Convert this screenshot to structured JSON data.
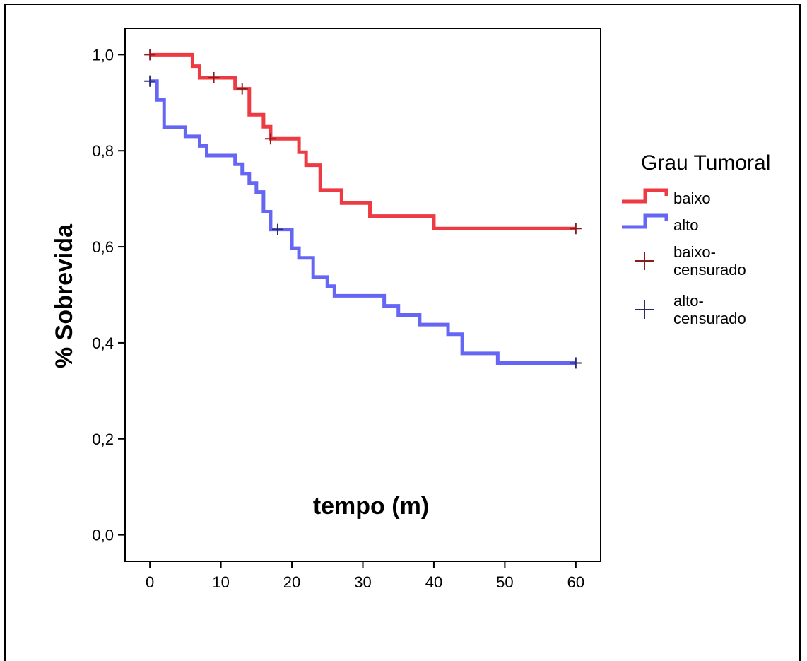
{
  "chart_data": {
    "type": "line",
    "subtype": "kaplan-meier step",
    "xlabel": "tempo (m)",
    "ylabel": "% Sobrevida",
    "xlim": [
      -3.5,
      63.5
    ],
    "ylim": [
      -0.055,
      1.055
    ],
    "x_ticks": [
      0,
      10,
      20,
      30,
      40,
      50,
      60
    ],
    "x_tick_labels": [
      "0",
      "10",
      "20",
      "30",
      "40",
      "50",
      "60"
    ],
    "y_ticks": [
      0.0,
      0.2,
      0.4,
      0.6,
      0.8,
      1.0
    ],
    "y_tick_labels": [
      "0,0",
      "0,2",
      "0,4",
      "0,6",
      "0,8",
      "1,0"
    ],
    "grid": false,
    "legend": {
      "title": "Grau Tumoral",
      "placement": "right",
      "entries": [
        {
          "label": "baixo",
          "kind": "line",
          "color": "#ee3a43"
        },
        {
          "label": "alto",
          "kind": "line",
          "color": "#6666f5"
        },
        {
          "label": "baixo-",
          "label2": "censurado",
          "kind": "marker",
          "color": "#8b1c1c"
        },
        {
          "label": "alto-",
          "label2": "censurado",
          "kind": "marker",
          "color": "#2a2a6e"
        }
      ]
    },
    "series": [
      {
        "name": "baixo",
        "color": "#ee3a43",
        "x": [
          0,
          6,
          7,
          12,
          14,
          16,
          17,
          21,
          22,
          24,
          27,
          31,
          40,
          60
        ],
        "y": [
          1.0,
          0.976,
          0.952,
          0.929,
          0.875,
          0.85,
          0.825,
          0.797,
          0.77,
          0.718,
          0.691,
          0.664,
          0.638,
          0.638
        ],
        "censored": {
          "x": [
            0,
            9,
            13,
            17,
            60
          ],
          "y": [
            1.0,
            0.952,
            0.929,
            0.825,
            0.638
          ],
          "color": "#8b1c1c"
        }
      },
      {
        "name": "alto",
        "color": "#6666f5",
        "x": [
          0,
          1,
          2,
          5,
          7,
          8,
          12,
          13,
          14,
          15,
          16,
          17,
          20,
          21,
          23,
          25,
          26,
          33,
          35,
          38,
          42,
          44,
          49,
          60
        ],
        "y": [
          0.945,
          0.906,
          0.849,
          0.83,
          0.81,
          0.79,
          0.772,
          0.752,
          0.733,
          0.714,
          0.673,
          0.636,
          0.597,
          0.577,
          0.537,
          0.518,
          0.498,
          0.477,
          0.458,
          0.438,
          0.418,
          0.378,
          0.358,
          0.358
        ],
        "censored": {
          "x": [
            0,
            18,
            60
          ],
          "y": [
            0.945,
            0.636,
            0.358
          ],
          "color": "#2a2a6e"
        }
      }
    ]
  }
}
